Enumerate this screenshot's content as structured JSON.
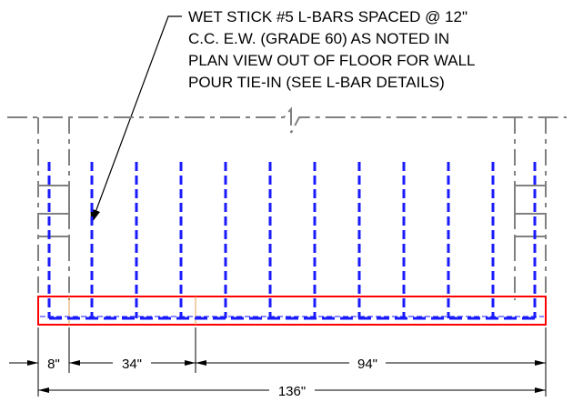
{
  "callout": {
    "lines": [
      "WET STICK #5 L-BARS SPACED @ 12\"",
      "C.C. E.W. (GRADE 60) AS NOTED IN",
      "PLAN VIEW OUT OF FLOOR FOR WALL",
      "POUR TIE-IN (SEE L-BAR DETAILS)"
    ]
  },
  "dimensions": {
    "d1": "8\"",
    "d2": "34\"",
    "d3": "94\"",
    "overall": "136\""
  },
  "colors": {
    "rebar": "#1a1aff",
    "slab_outline": "#ff0000",
    "hidden_lines": "#808080",
    "offsets": "#e0a050",
    "ink": "#000000"
  }
}
